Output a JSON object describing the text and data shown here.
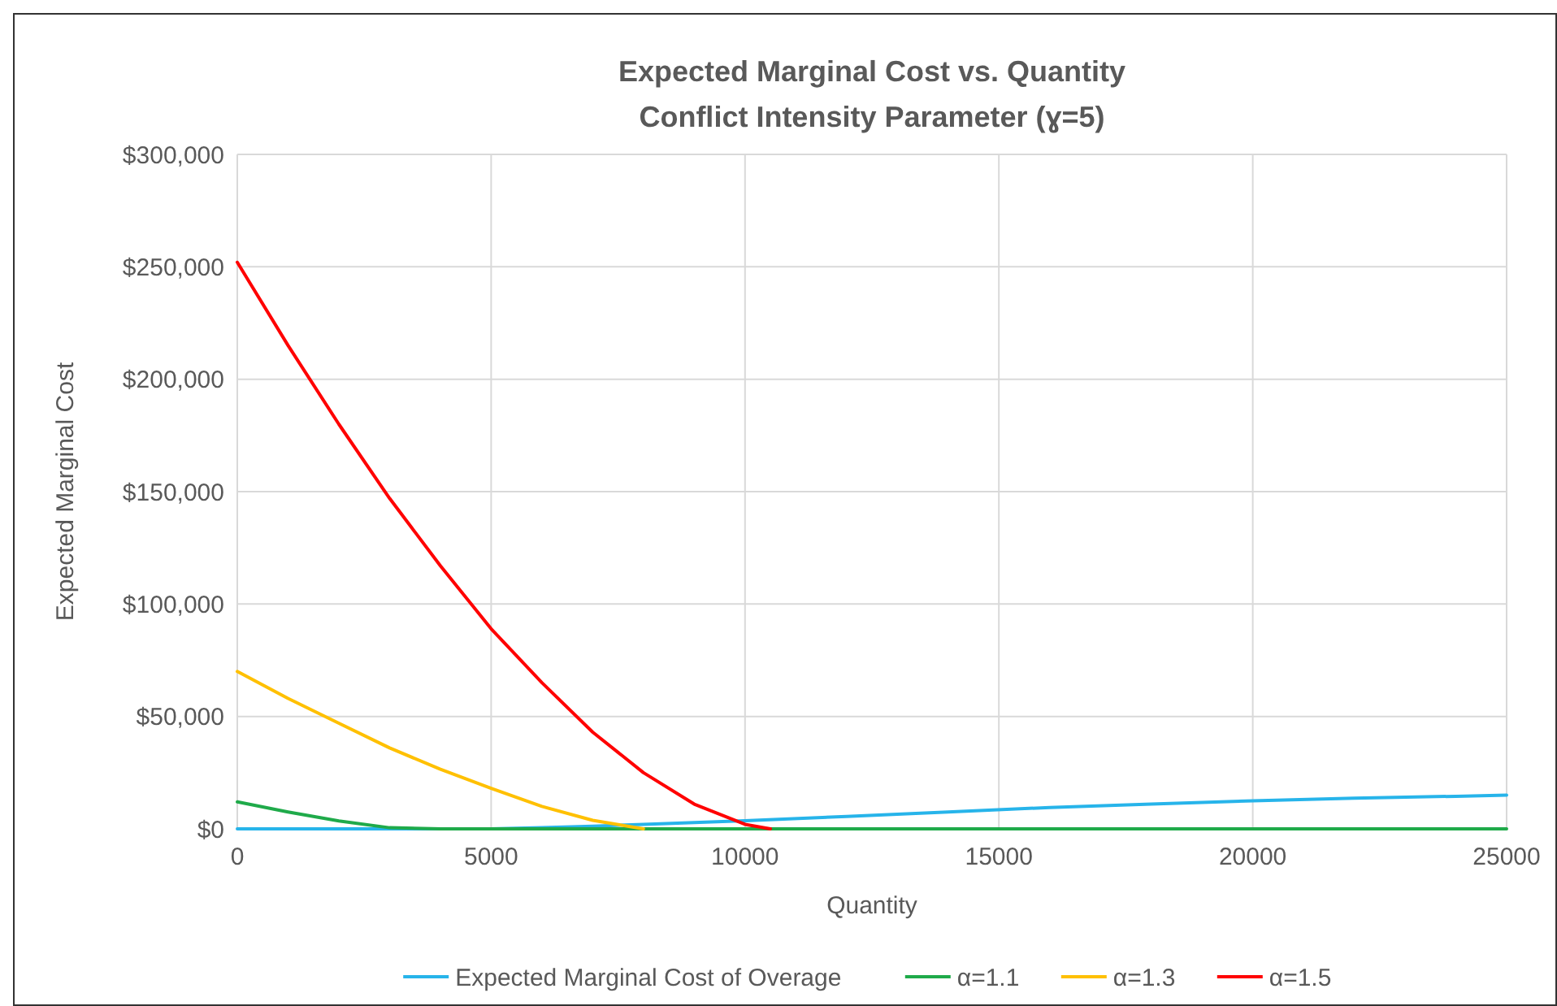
{
  "chart_data": {
    "type": "line",
    "title": "Expected Marginal Cost vs. Quantity",
    "subtitle": "Conflict Intensity Parameter (ɣ=5)",
    "xlabel": "Quantity",
    "ylabel": "Expected Marginal Cost",
    "xlim": [
      0,
      25000
    ],
    "xticks": [
      0,
      5000,
      10000,
      15000,
      20000,
      25000
    ],
    "ylim": [
      0,
      300000
    ],
    "yticks": [
      {
        "value": 0,
        "label": "$0"
      },
      {
        "value": 50000,
        "label": "$50,000"
      },
      {
        "value": 100000,
        "label": "$100,000"
      },
      {
        "value": 150000,
        "label": "$150,000"
      },
      {
        "value": 200000,
        "label": "$200,000"
      },
      {
        "value": 250000,
        "label": "$250,000"
      },
      {
        "value": 300000,
        "label": "$300,000"
      }
    ],
    "grid": true,
    "legend": "bottom",
    "marker": "none",
    "line_style": "solid",
    "series": [
      {
        "name": "Expected Marginal Cost of Overage",
        "color": "#27b4ea",
        "x": [
          0,
          5000,
          6000,
          7000,
          8000,
          9000,
          10000,
          12000,
          14000,
          16000,
          18000,
          20000,
          22000,
          24000,
          25000
        ],
        "values": [
          0,
          0,
          500,
          1200,
          2000,
          2800,
          3600,
          5500,
          7500,
          9500,
          11000,
          12500,
          13600,
          14500,
          15000
        ]
      },
      {
        "name": "α=1.1",
        "color": "#1faa4a",
        "x": [
          0,
          1000,
          2000,
          3000,
          4000,
          10000,
          25000
        ],
        "values": [
          12000,
          7500,
          3500,
          500,
          0,
          0,
          0
        ]
      },
      {
        "name": "α=1.3",
        "color": "#ffc000",
        "x": [
          0,
          1000,
          2000,
          3000,
          4000,
          5000,
          6000,
          7000,
          8000
        ],
        "values": [
          70000,
          58000,
          47000,
          36000,
          26500,
          18000,
          10000,
          3800,
          0
        ]
      },
      {
        "name": "α=1.5",
        "color": "#ff0000",
        "x": [
          0,
          1000,
          2000,
          3000,
          4000,
          5000,
          6000,
          7000,
          8000,
          9000,
          10000,
          10500
        ],
        "values": [
          252000,
          215000,
          180000,
          147000,
          117000,
          89000,
          65000,
          43000,
          25000,
          11000,
          2000,
          0
        ]
      }
    ]
  }
}
